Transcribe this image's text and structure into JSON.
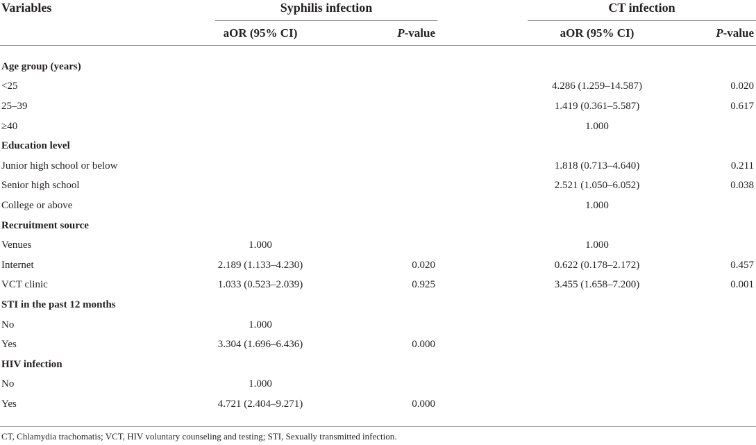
{
  "header": {
    "variables": "Variables",
    "syphilis": "Syphilis infection",
    "ct": "CT infection",
    "aor1": "aOR (95% CI)",
    "p1_italic": "P",
    "p1_rest": "-value",
    "aor2": "aOR (95% CI)",
    "p2_italic": "P",
    "p2_rest": "-value"
  },
  "rows": [
    {
      "label": "Age group (years)",
      "section": true
    },
    {
      "label": "<25",
      "syph_aor": "",
      "syph_p": "",
      "ct_aor": "4.286 (1.259–14.587)",
      "ct_p": "0.020"
    },
    {
      "label": "25–39",
      "syph_aor": "",
      "syph_p": "",
      "ct_aor": "1.419 (0.361–5.587)",
      "ct_p": "0.617"
    },
    {
      "label": "≥40",
      "syph_aor": "",
      "syph_p": "",
      "ct_aor": "1.000",
      "ct_p": ""
    },
    {
      "label": "Education level",
      "section": true
    },
    {
      "label": "Junior high school or below",
      "syph_aor": "",
      "syph_p": "",
      "ct_aor": "1.818 (0.713–4.640)",
      "ct_p": "0.211"
    },
    {
      "label": "Senior high school",
      "syph_aor": "",
      "syph_p": "",
      "ct_aor": "2.521 (1.050–6.052)",
      "ct_p": "0.038"
    },
    {
      "label": "College or above",
      "syph_aor": "",
      "syph_p": "",
      "ct_aor": "1.000",
      "ct_p": ""
    },
    {
      "label": "Recruitment source",
      "section": true
    },
    {
      "label": "Venues",
      "syph_aor": "1.000",
      "syph_p": "",
      "ct_aor": "1.000",
      "ct_p": ""
    },
    {
      "label": "Internet",
      "syph_aor": "2.189 (1.133–4.230)",
      "syph_p": "0.020",
      "ct_aor": "0.622 (0.178–2.172)",
      "ct_p": "0.457"
    },
    {
      "label": "VCT clinic",
      "syph_aor": "1.033 (0.523–2.039)",
      "syph_p": "0.925",
      "ct_aor": "3.455 (1.658–7.200)",
      "ct_p": "0.001"
    },
    {
      "label": "STI in the past 12 months",
      "section": true
    },
    {
      "label": "No",
      "syph_aor": "1.000",
      "syph_p": "",
      "ct_aor": "",
      "ct_p": ""
    },
    {
      "label": "Yes",
      "syph_aor": "3.304 (1.696–6.436)",
      "syph_p": "0.000",
      "ct_aor": "",
      "ct_p": ""
    },
    {
      "label": "HIV infection",
      "section": true
    },
    {
      "label": "No",
      "syph_aor": "1.000",
      "syph_p": "",
      "ct_aor": "",
      "ct_p": ""
    },
    {
      "label": "Yes",
      "syph_aor": "4.721 (2.404–9.271)",
      "syph_p": "0.000",
      "ct_aor": "",
      "ct_p": ""
    }
  ],
  "footnote": "CT, Chlamydia trachomatis; VCT, HIV voluntary counseling and testing; STI, Sexually transmitted infection."
}
